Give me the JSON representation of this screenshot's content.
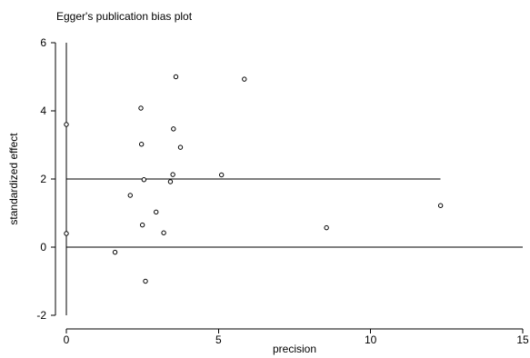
{
  "chart_data": {
    "type": "scatter",
    "title": "Egger's publication bias plot",
    "xlabel": "precision",
    "ylabel": "standardized effect",
    "xlim": [
      0,
      15
    ],
    "ylim": [
      -2,
      6
    ],
    "x_ticks": [
      0,
      5,
      10,
      15
    ],
    "y_ticks": [
      -2,
      0,
      2,
      4,
      6
    ],
    "grid": false,
    "legend": "none",
    "colors": {
      "marker_edge": "#000000",
      "marker_fill": "#ffffff",
      "line": "#000000"
    },
    "reference_lines": [
      {
        "kind": "horizontal",
        "y": 0,
        "x_range": [
          0,
          15
        ]
      },
      {
        "kind": "horizontal",
        "y": 2,
        "x_range": [
          0,
          12.3
        ]
      },
      {
        "kind": "vertical",
        "x": 0,
        "y_range": [
          -2,
          6
        ]
      }
    ],
    "points": [
      {
        "x": 0.0,
        "y": 3.6
      },
      {
        "x": 0.0,
        "y": 0.4
      },
      {
        "x": 1.6,
        "y": -0.15
      },
      {
        "x": 2.1,
        "y": 1.52
      },
      {
        "x": 2.45,
        "y": 4.08
      },
      {
        "x": 2.47,
        "y": 3.02
      },
      {
        "x": 2.5,
        "y": 0.65
      },
      {
        "x": 2.55,
        "y": 1.98
      },
      {
        "x": 2.6,
        "y": -1.0
      },
      {
        "x": 2.95,
        "y": 1.03
      },
      {
        "x": 3.2,
        "y": 0.42
      },
      {
        "x": 3.42,
        "y": 1.92
      },
      {
        "x": 3.5,
        "y": 2.13
      },
      {
        "x": 3.52,
        "y": 3.47
      },
      {
        "x": 3.6,
        "y": 5.0
      },
      {
        "x": 3.75,
        "y": 2.93
      },
      {
        "x": 5.1,
        "y": 2.12
      },
      {
        "x": 5.85,
        "y": 4.93
      },
      {
        "x": 8.55,
        "y": 0.57
      },
      {
        "x": 12.3,
        "y": 1.22
      }
    ]
  }
}
